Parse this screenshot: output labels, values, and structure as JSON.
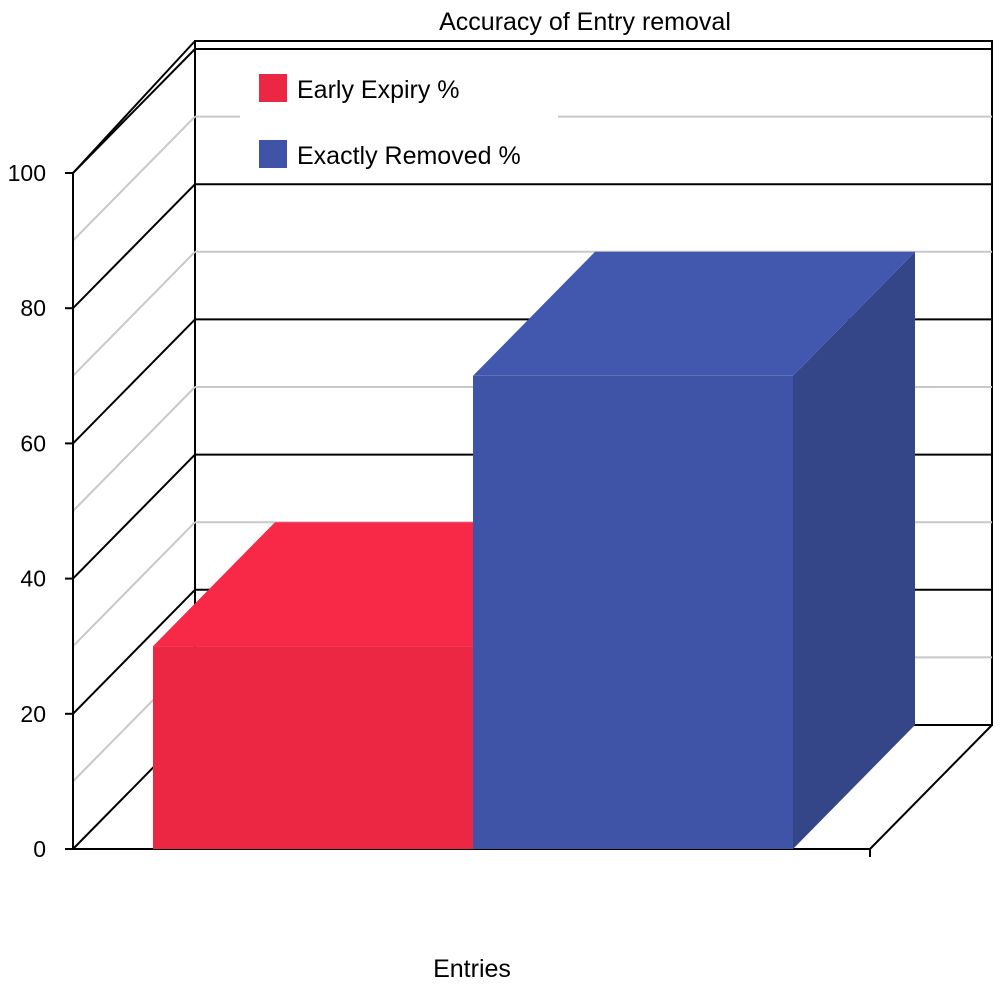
{
  "chart_data": {
    "type": "bar",
    "title": "Accuracy of Entry removal",
    "xlabel": "",
    "ylabel": "",
    "categories": [
      "Entries"
    ],
    "series": [
      {
        "name": "Early Expiry %",
        "values": [
          30
        ],
        "color": "#ec2743"
      },
      {
        "name": "Exactly Removed %",
        "values": [
          70
        ],
        "color": "#3f54a6"
      }
    ],
    "ylim": [
      0,
      100
    ],
    "yticks": [
      "0",
      "20",
      "40",
      "60",
      "80",
      "100"
    ],
    "grid": true,
    "legend_position": "top-left",
    "style": "3d"
  }
}
